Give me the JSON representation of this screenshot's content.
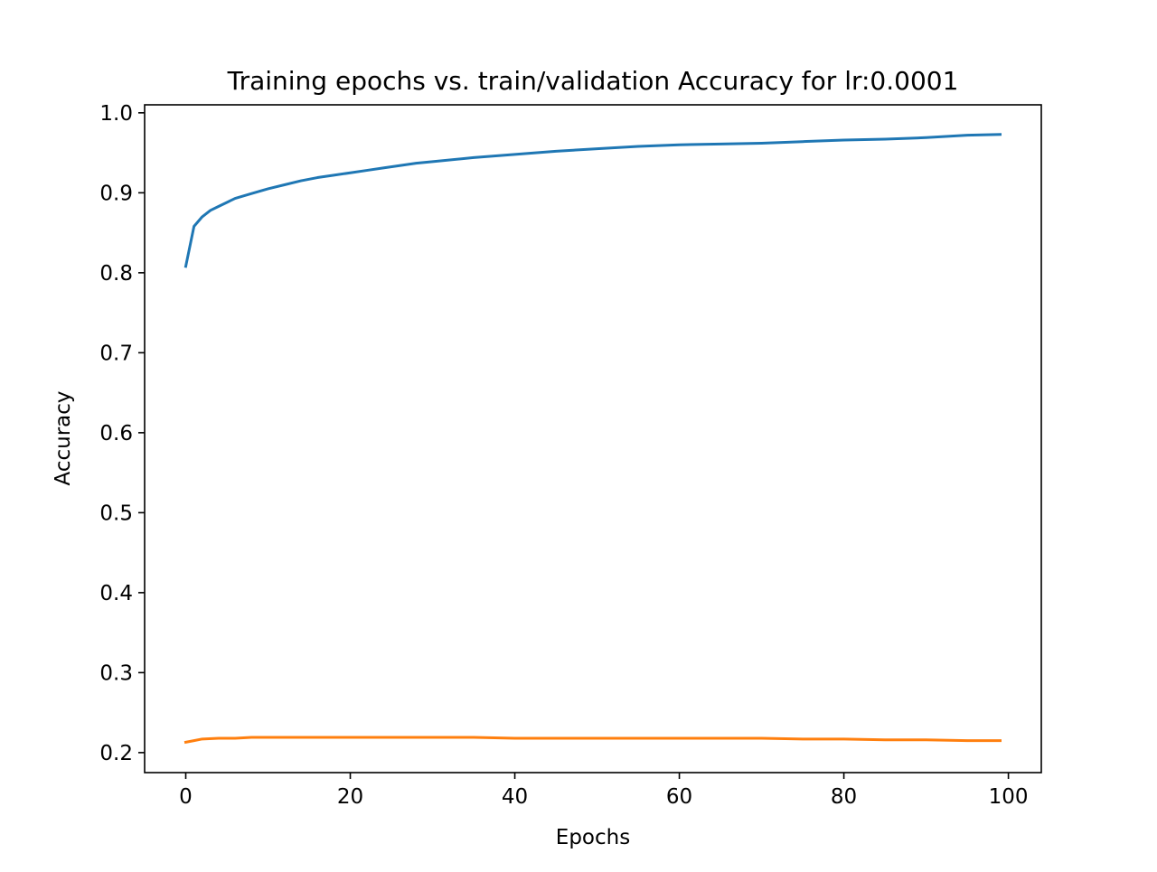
{
  "chart_data": {
    "type": "line",
    "title": "Training epochs vs. train/validation Accuracy for lr:0.0001",
    "xlabel": "Epochs",
    "ylabel": "Accuracy",
    "xlim": [
      -5,
      104
    ],
    "ylim": [
      0.175,
      1.01
    ],
    "xticks": [
      0,
      20,
      40,
      60,
      80,
      100
    ],
    "xtick_labels": [
      "0",
      "20",
      "40",
      "60",
      "80",
      "100"
    ],
    "yticks": [
      0.2,
      0.3,
      0.4,
      0.5,
      0.6,
      0.7,
      0.8,
      0.9,
      1.0
    ],
    "ytick_labels": [
      "0.2",
      "0.3",
      "0.4",
      "0.5",
      "0.6",
      "0.7",
      "0.8",
      "0.9",
      "1.0"
    ],
    "grid": false,
    "legend": "none",
    "series": [
      {
        "color": "#1f77b4",
        "points": [
          [
            0,
            0.808
          ],
          [
            1,
            0.858
          ],
          [
            2,
            0.87
          ],
          [
            3,
            0.878
          ],
          [
            4,
            0.883
          ],
          [
            5,
            0.888
          ],
          [
            6,
            0.893
          ],
          [
            8,
            0.899
          ],
          [
            10,
            0.905
          ],
          [
            12,
            0.91
          ],
          [
            14,
            0.915
          ],
          [
            16,
            0.919
          ],
          [
            18,
            0.922
          ],
          [
            20,
            0.925
          ],
          [
            22,
            0.928
          ],
          [
            24,
            0.931
          ],
          [
            26,
            0.934
          ],
          [
            28,
            0.937
          ],
          [
            30,
            0.939
          ],
          [
            35,
            0.944
          ],
          [
            40,
            0.948
          ],
          [
            45,
            0.952
          ],
          [
            50,
            0.955
          ],
          [
            55,
            0.958
          ],
          [
            60,
            0.96
          ],
          [
            65,
            0.961
          ],
          [
            70,
            0.962
          ],
          [
            75,
            0.964
          ],
          [
            80,
            0.966
          ],
          [
            85,
            0.967
          ],
          [
            90,
            0.969
          ],
          [
            95,
            0.972
          ],
          [
            99,
            0.973
          ]
        ]
      },
      {
        "color": "#ff7f0e",
        "points": [
          [
            0,
            0.213
          ],
          [
            1,
            0.215
          ],
          [
            2,
            0.217
          ],
          [
            4,
            0.218
          ],
          [
            6,
            0.218
          ],
          [
            8,
            0.219
          ],
          [
            10,
            0.219
          ],
          [
            15,
            0.219
          ],
          [
            20,
            0.219
          ],
          [
            25,
            0.219
          ],
          [
            30,
            0.219
          ],
          [
            35,
            0.219
          ],
          [
            40,
            0.218
          ],
          [
            45,
            0.218
          ],
          [
            50,
            0.218
          ],
          [
            55,
            0.218
          ],
          [
            60,
            0.218
          ],
          [
            65,
            0.218
          ],
          [
            70,
            0.218
          ],
          [
            75,
            0.217
          ],
          [
            80,
            0.217
          ],
          [
            85,
            0.216
          ],
          [
            90,
            0.216
          ],
          [
            95,
            0.215
          ],
          [
            99,
            0.215
          ]
        ]
      }
    ]
  }
}
